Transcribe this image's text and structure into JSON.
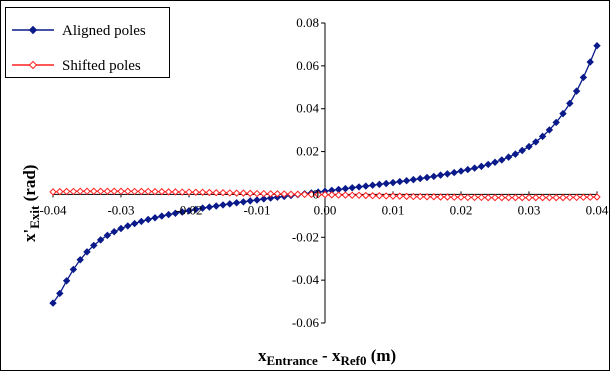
{
  "chart_data": {
    "type": "scatter",
    "xlim": [
      -0.04,
      0.04
    ],
    "ylim": [
      -0.06,
      0.08
    ],
    "x_ticks": [
      -0.04,
      -0.03,
      -0.02,
      -0.01,
      0.0,
      0.01,
      0.02,
      0.03,
      0.04
    ],
    "y_ticks": [
      -0.06,
      -0.04,
      -0.02,
      0,
      0.02,
      0.04,
      0.06,
      0.08
    ],
    "x_tick_labels": [
      "-0.04",
      "-0.03",
      "-0.02",
      "-0.01",
      "0.00",
      "0.01",
      "0.02",
      "0.03",
      "0.04"
    ],
    "y_tick_labels": [
      "-0.06",
      "-0.04",
      "-0.02",
      "0",
      "0.02",
      "0.04",
      "0.06",
      "0.08"
    ],
    "xlabel": {
      "main": "x",
      "sub1": "Entrance",
      "mid": " - x",
      "sub2": "Ref0",
      "tail": " (m)"
    },
    "ylabel": {
      "main": "x'",
      "sub": "Exit",
      "tail": " (rad)"
    },
    "grid": false,
    "legend_position": "top-left",
    "series": [
      {
        "name": "Aligned poles",
        "color": "#0a1a8a",
        "marker": "diamond",
        "x": [
          -0.04,
          -0.039,
          -0.038,
          -0.037,
          -0.036,
          -0.035,
          -0.034,
          -0.033,
          -0.032,
          -0.031,
          -0.03,
          -0.029,
          -0.028,
          -0.027,
          -0.026,
          -0.025,
          -0.024,
          -0.023,
          -0.022,
          -0.021,
          -0.02,
          -0.019,
          -0.018,
          -0.017,
          -0.016,
          -0.015,
          -0.014,
          -0.013,
          -0.012,
          -0.011,
          -0.01,
          -0.009,
          -0.008,
          -0.007,
          -0.006,
          -0.005,
          -0.004,
          -0.003,
          -0.002,
          -0.001,
          0.0,
          0.001,
          0.002,
          0.003,
          0.004,
          0.005,
          0.006,
          0.007,
          0.008,
          0.009,
          0.01,
          0.011,
          0.012,
          0.013,
          0.014,
          0.015,
          0.016,
          0.017,
          0.018,
          0.019,
          0.02,
          0.021,
          0.022,
          0.023,
          0.024,
          0.025,
          0.026,
          0.027,
          0.028,
          0.029,
          0.03,
          0.031,
          0.032,
          0.033,
          0.034,
          0.035,
          0.036,
          0.037,
          0.038,
          0.039,
          0.04
        ],
        "y": [
          -0.0507,
          -0.0462,
          -0.0403,
          -0.035,
          -0.0305,
          -0.0268,
          -0.0238,
          -0.0212,
          -0.0191,
          -0.0174,
          -0.0159,
          -0.0147,
          -0.0136,
          -0.0126,
          -0.0117,
          -0.0109,
          -0.0101,
          -0.0094,
          -0.0088,
          -0.0082,
          -0.0076,
          -0.007,
          -0.0064,
          -0.0059,
          -0.0054,
          -0.0049,
          -0.0044,
          -0.0039,
          -0.0035,
          -0.003,
          -0.0026,
          -0.0021,
          -0.0017,
          -0.0013,
          -0.0009,
          -0.0005,
          -0.0001,
          0.0003,
          0.0007,
          0.0011,
          0.0015,
          0.0019,
          0.0023,
          0.0027,
          0.0031,
          0.0035,
          0.0039,
          0.0043,
          0.0047,
          0.0051,
          0.0055,
          0.006,
          0.0064,
          0.0069,
          0.0074,
          0.0079,
          0.0084,
          0.009,
          0.0096,
          0.0102,
          0.0109,
          0.0116,
          0.0123,
          0.0131,
          0.014,
          0.015,
          0.0161,
          0.0174,
          0.0188,
          0.0205,
          0.0223,
          0.0245,
          0.0271,
          0.0301,
          0.0336,
          0.0377,
          0.0425,
          0.0482,
          0.0546,
          0.0618,
          0.0694
        ]
      },
      {
        "name": "Shifted poles",
        "color": "#ff2020",
        "marker": "diamond-open",
        "x": [
          -0.04,
          -0.039,
          -0.038,
          -0.037,
          -0.036,
          -0.035,
          -0.034,
          -0.033,
          -0.032,
          -0.031,
          -0.03,
          -0.029,
          -0.028,
          -0.027,
          -0.026,
          -0.025,
          -0.024,
          -0.023,
          -0.022,
          -0.021,
          -0.02,
          -0.019,
          -0.018,
          -0.017,
          -0.016,
          -0.015,
          -0.014,
          -0.013,
          -0.012,
          -0.011,
          -0.01,
          -0.009,
          -0.008,
          -0.007,
          -0.006,
          -0.005,
          -0.004,
          -0.003,
          -0.002,
          -0.001,
          0.0,
          0.001,
          0.002,
          0.003,
          0.004,
          0.005,
          0.006,
          0.007,
          0.008,
          0.009,
          0.01,
          0.011,
          0.012,
          0.013,
          0.014,
          0.015,
          0.016,
          0.017,
          0.018,
          0.019,
          0.02,
          0.021,
          0.022,
          0.023,
          0.024,
          0.025,
          0.026,
          0.027,
          0.028,
          0.029,
          0.03,
          0.031,
          0.032,
          0.033,
          0.034,
          0.035,
          0.036,
          0.037,
          0.038,
          0.039,
          0.04
        ],
        "y": [
          0.0012,
          0.0013,
          0.0014,
          0.0014,
          0.0015,
          0.0015,
          0.0015,
          0.0015,
          0.0015,
          0.0015,
          0.0015,
          0.0015,
          0.0014,
          0.0014,
          0.0014,
          0.0013,
          0.0013,
          0.0012,
          0.0012,
          0.0011,
          0.0011,
          0.001,
          0.001,
          0.0009,
          0.0008,
          0.0008,
          0.0007,
          0.0006,
          0.0006,
          0.0005,
          0.0004,
          0.0004,
          0.0003,
          0.0003,
          0.0002,
          0.0001,
          0.0001,
          0.0,
          0.0,
          -0.0001,
          -0.0001,
          -0.0002,
          -0.0003,
          -0.0003,
          -0.0004,
          -0.0004,
          -0.0005,
          -0.0006,
          -0.0006,
          -0.0007,
          -0.0008,
          -0.0008,
          -0.0009,
          -0.001,
          -0.001,
          -0.0011,
          -0.0011,
          -0.0012,
          -0.0012,
          -0.0013,
          -0.0013,
          -0.0014,
          -0.0014,
          -0.0014,
          -0.0015,
          -0.0015,
          -0.0015,
          -0.0015,
          -0.0015,
          -0.0015,
          -0.0015,
          -0.0015,
          -0.0015,
          -0.0015,
          -0.0015,
          -0.0015,
          -0.0014,
          -0.0014,
          -0.0013,
          -0.0013,
          -0.0012
        ]
      }
    ]
  }
}
